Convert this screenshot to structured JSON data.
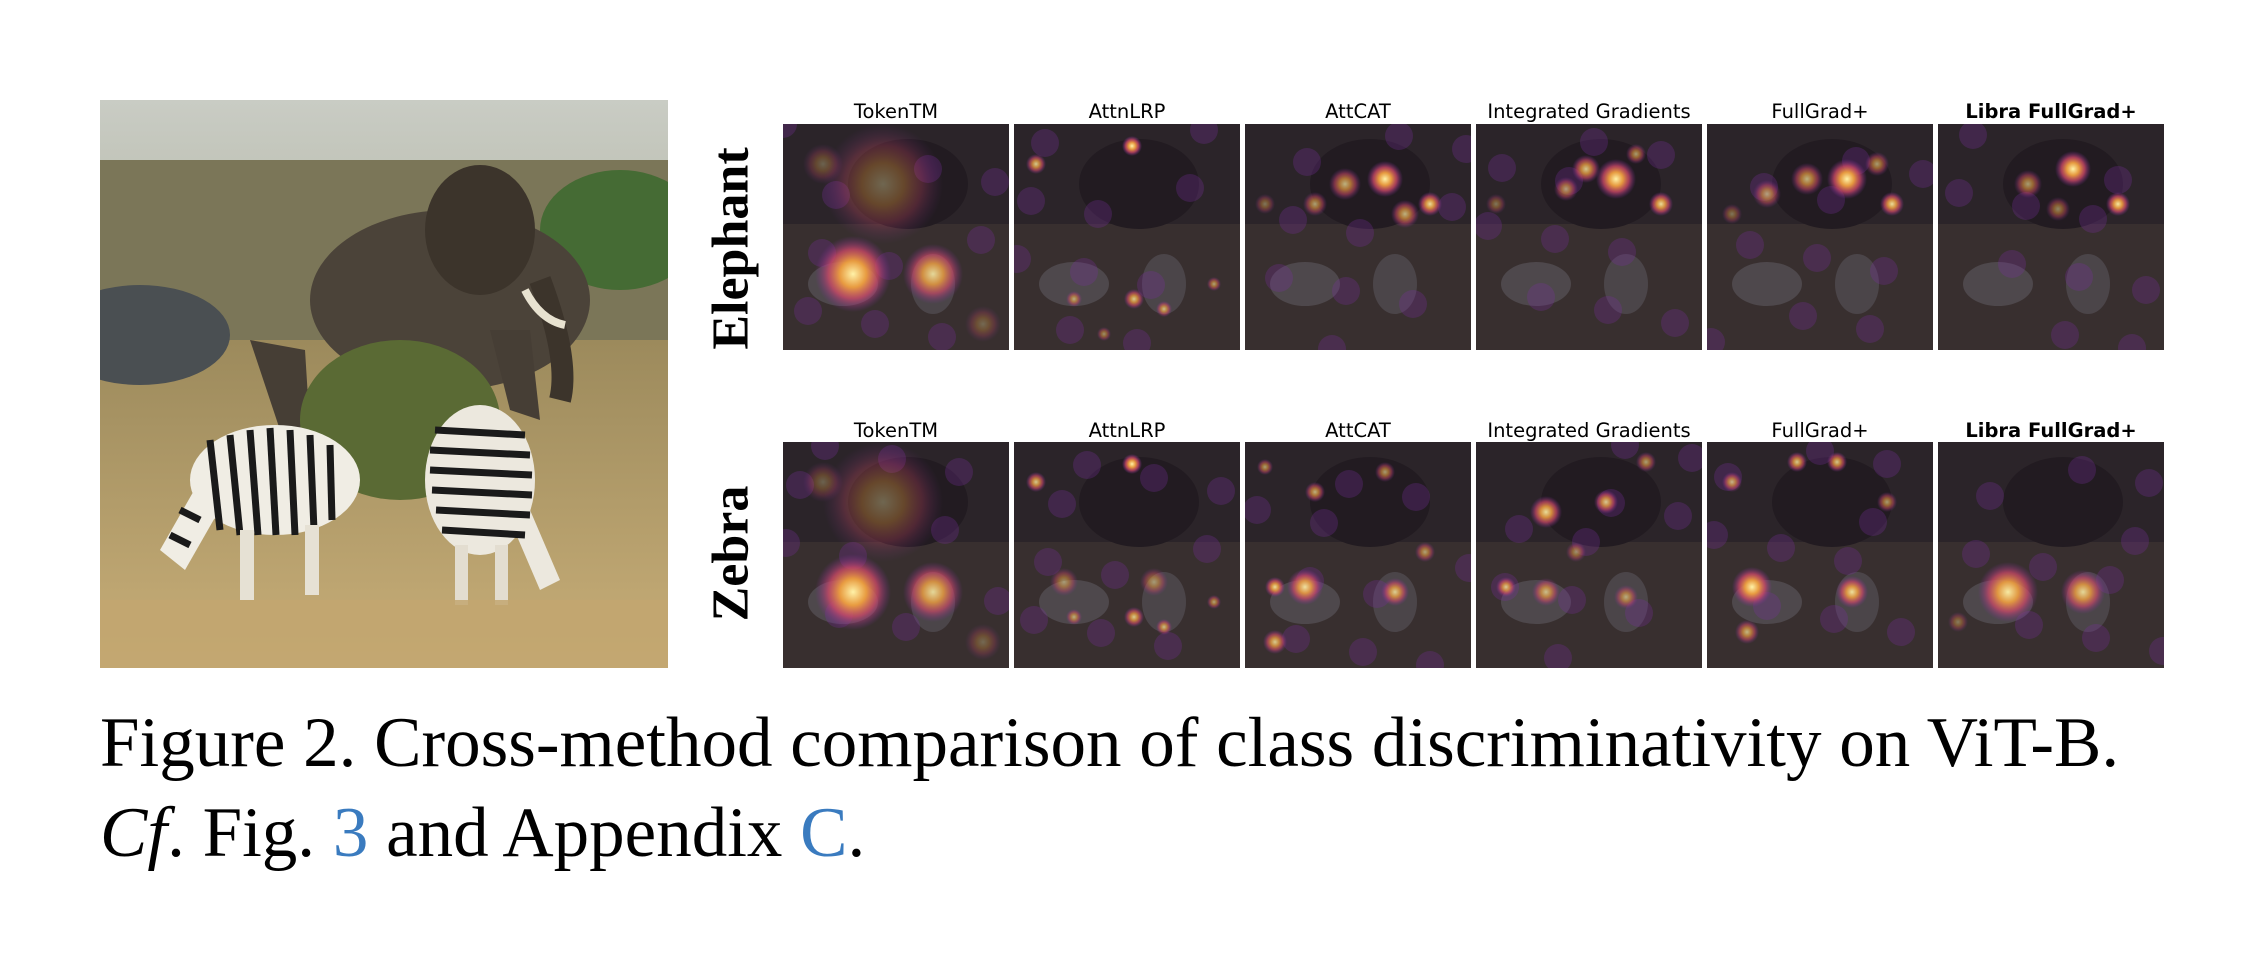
{
  "figure": {
    "input_image_alt": "elephant and two zebras grazing in dry grass",
    "rows": [
      {
        "label": "Elephant",
        "key": "elephant"
      },
      {
        "label": "Zebra",
        "key": "zebra"
      }
    ],
    "methods": [
      {
        "name": "TokenTM",
        "bold": false
      },
      {
        "name": "AttnLRP",
        "bold": false
      },
      {
        "name": "AttCAT",
        "bold": false
      },
      {
        "name": "Integrated Gradients",
        "bold": false
      },
      {
        "name": "FullGrad+",
        "bold": false
      },
      {
        "name": "Libra FullGrad+",
        "bold": true
      }
    ]
  },
  "caption": {
    "prefix": "Figure 2.",
    "text": "Cross-method comparison of class discriminativity on ViT-B.",
    "cf": "Cf",
    "fig_word": ". Fig.",
    "fig_ref": "3",
    "and_word": "and Appendix",
    "appendix_ref": "C",
    "end": "."
  },
  "colors": {
    "heat_hot": "#fff2a8",
    "heat_mid": "#f0a040",
    "heat_warm": "#d24a6a",
    "heat_cool": "#7a2ea0",
    "link": "#3a7bbf"
  }
}
